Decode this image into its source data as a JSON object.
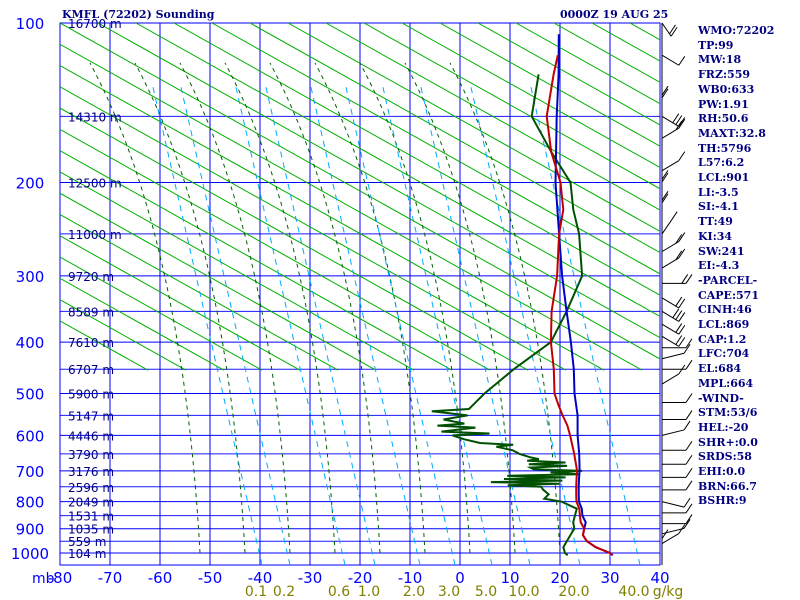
{
  "header": {
    "station": "KMFL (72202) Sounding",
    "time": "0000Z 19 AUG 25"
  },
  "indices": [
    "WMO:72202",
    "TP:99",
    "MW:18",
    "FRZ:559",
    "WB0:633",
    "PW:1.91",
    "RH:50.6",
    "MAXT:32.8",
    "TH:5796",
    "L57:6.2",
    "LCL:901",
    "LI:-3.5",
    "SI:-4.1",
    "TT:49",
    "KI:34",
    "SW:241",
    "EI:-4.3",
    "-PARCEL-",
    "CAPE:571",
    "CINH:46",
    "LCL:869",
    "CAP:1.2",
    "LFC:704",
    "EL:684",
    "MPL:664",
    "-WIND-",
    "STM:53/6",
    "HEL:-20",
    "SHR+:0.0",
    "SRDS:58",
    "EHI:0.0",
    "BRN:66.7",
    "BSHR:9"
  ],
  "colors": {
    "grid": "#0000ff",
    "dry_adiabat": "#00b000",
    "moist_adiabat": "#006000",
    "mixing_ratio": "#00aaff",
    "temperature": "#c00000",
    "dewpoint": "#005000",
    "parcel": "#0000c0",
    "label": "#000080",
    "mixing_label": "#808000"
  },
  "chart_data": {
    "type": "line",
    "title": "KMFL (72202) Sounding",
    "pressure_unit": "mb",
    "mixing_unit": "g/kg",
    "pressure_ticks": [
      "100",
      "200",
      "300",
      "400",
      "500",
      "600",
      "700",
      "800",
      "900",
      "1000"
    ],
    "temperature_ticks": [
      "-80",
      "-70",
      "-60",
      "-50",
      "-40",
      "-30",
      "-20",
      "-10",
      "0",
      "10",
      "20",
      "30",
      "40"
    ],
    "mixing_ratio_labels": [
      "0.1",
      "0.2",
      "0.6",
      "1.0",
      "2.0",
      "3.0",
      "5.0",
      "10.0",
      "20.0",
      "40.0"
    ],
    "height_labels": [
      {
        "p": 100,
        "label": "16700 m"
      },
      {
        "p": 150,
        "label": "14310 m"
      },
      {
        "p": 200,
        "label": "12500 m"
      },
      {
        "p": 250,
        "label": "11000 m"
      },
      {
        "p": 300,
        "label": "9720 m"
      },
      {
        "p": 350,
        "label": "8589 m"
      },
      {
        "p": 400,
        "label": "7610 m"
      },
      {
        "p": 450,
        "label": "6707 m"
      },
      {
        "p": 500,
        "label": "5900 m"
      },
      {
        "p": 550,
        "label": "5147 m"
      },
      {
        "p": 600,
        "label": "4446 m"
      },
      {
        "p": 650,
        "label": "3790 m"
      },
      {
        "p": 700,
        "label": "3176 m"
      },
      {
        "p": 750,
        "label": "2596 m"
      },
      {
        "p": 800,
        "label": "2049 m"
      },
      {
        "p": 850,
        "label": "1531 m"
      },
      {
        "p": 900,
        "label": "1035 m"
      },
      {
        "p": 950,
        "label": "559 m"
      },
      {
        "p": 1000,
        "label": "104 m"
      }
    ],
    "temperature": [
      [
        1010,
        31
      ],
      [
        1000,
        30
      ],
      [
        975,
        26
      ],
      [
        950,
        23
      ],
      [
        925,
        21
      ],
      [
        900,
        20
      ],
      [
        875,
        18
      ],
      [
        850,
        16.5
      ],
      [
        825,
        15
      ],
      [
        800,
        13
      ],
      [
        775,
        11.5
      ],
      [
        750,
        10
      ],
      [
        725,
        8.5
      ],
      [
        700,
        7
      ],
      [
        650,
        3
      ],
      [
        600,
        -1.5
      ],
      [
        575,
        -4
      ],
      [
        550,
        -7
      ],
      [
        525,
        -10
      ],
      [
        500,
        -13
      ],
      [
        450,
        -18
      ],
      [
        400,
        -24
      ],
      [
        350,
        -30
      ],
      [
        300,
        -36
      ],
      [
        250,
        -44
      ],
      [
        225,
        -48
      ],
      [
        200,
        -54
      ],
      [
        175,
        -62
      ],
      [
        150,
        -70
      ],
      [
        125,
        -77
      ],
      [
        115,
        -80
      ]
    ],
    "dewpoint": [
      [
        1010,
        22
      ],
      [
        1000,
        21
      ],
      [
        975,
        19.5
      ],
      [
        950,
        19
      ],
      [
        925,
        18.5
      ],
      [
        900,
        18
      ],
      [
        875,
        16.5
      ],
      [
        850,
        15.5
      ],
      [
        825,
        14.5
      ],
      [
        800,
        10
      ],
      [
        790,
        6
      ],
      [
        775,
        6
      ],
      [
        760,
        4
      ],
      [
        750,
        3
      ],
      [
        745,
        -4
      ],
      [
        740,
        6
      ],
      [
        735,
        -8
      ],
      [
        730,
        6
      ],
      [
        725,
        -6
      ],
      [
        720,
        6
      ],
      [
        715,
        -6
      ],
      [
        710,
        8
      ],
      [
        705,
        2
      ],
      [
        700,
        8
      ],
      [
        695,
        -2
      ],
      [
        690,
        -3
      ],
      [
        685,
        4
      ],
      [
        680,
        -4
      ],
      [
        675,
        3
      ],
      [
        670,
        -5
      ],
      [
        665,
        -3
      ],
      [
        660,
        -5
      ],
      [
        650,
        -8
      ],
      [
        640,
        -10
      ],
      [
        630,
        -14
      ],
      [
        625,
        -11
      ],
      [
        620,
        -18
      ],
      [
        610,
        -22
      ],
      [
        600,
        -25
      ],
      [
        595,
        -18
      ],
      [
        590,
        -28
      ],
      [
        580,
        -22
      ],
      [
        575,
        -30
      ],
      [
        570,
        -25
      ],
      [
        560,
        -30
      ],
      [
        550,
        -26
      ],
      [
        540,
        -34
      ],
      [
        535,
        -27
      ],
      [
        525,
        -27
      ],
      [
        500,
        -27
      ],
      [
        450,
        -26
      ],
      [
        400,
        -24
      ],
      [
        350,
        -27
      ],
      [
        300,
        -31
      ],
      [
        250,
        -40
      ],
      [
        225,
        -46
      ],
      [
        200,
        -52
      ],
      [
        175,
        -62
      ],
      [
        150,
        -73
      ],
      [
        125,
        -80
      ]
    ],
    "parcel": [
      [
        1010,
        31
      ],
      [
        1000,
        30
      ],
      [
        975,
        26
      ],
      [
        950,
        23
      ],
      [
        925,
        21
      ],
      [
        900,
        20
      ],
      [
        875,
        19
      ],
      [
        850,
        17
      ],
      [
        825,
        15.5
      ],
      [
        800,
        13.5
      ],
      [
        775,
        12
      ],
      [
        750,
        10.5
      ],
      [
        725,
        9
      ],
      [
        700,
        7.5
      ],
      [
        650,
        4
      ],
      [
        600,
        0
      ],
      [
        550,
        -4
      ],
      [
        500,
        -9
      ],
      [
        450,
        -14
      ],
      [
        400,
        -20
      ],
      [
        350,
        -27
      ],
      [
        300,
        -35
      ],
      [
        250,
        -44
      ],
      [
        200,
        -55
      ],
      [
        150,
        -68
      ],
      [
        125,
        -76
      ],
      [
        105,
        -84
      ]
    ],
    "wind_barbs": [
      [
        100,
        "SSE",
        2
      ],
      [
        115,
        "SE",
        1
      ],
      [
        130,
        "S",
        2
      ],
      [
        150,
        "SW",
        3
      ],
      [
        165,
        "NE",
        2
      ],
      [
        190,
        "NE",
        1
      ],
      [
        210,
        "N",
        2
      ],
      [
        230,
        "N",
        2
      ],
      [
        250,
        "NNW",
        1
      ],
      [
        270,
        "NW",
        2
      ],
      [
        290,
        "NW",
        2
      ],
      [
        310,
        "W",
        2
      ],
      [
        330,
        "SW",
        2
      ],
      [
        350,
        "SW",
        3
      ],
      [
        370,
        "SW",
        2
      ],
      [
        390,
        "SW",
        2
      ],
      [
        410,
        "W",
        1
      ],
      [
        430,
        "WNW",
        1
      ],
      [
        450,
        "W",
        1
      ],
      [
        480,
        "NW",
        1
      ],
      [
        520,
        "W",
        1
      ],
      [
        560,
        "W",
        1
      ],
      [
        600,
        "WNW",
        1
      ],
      [
        640,
        "W",
        1
      ],
      [
        680,
        "W",
        1
      ],
      [
        720,
        "W",
        1
      ],
      [
        760,
        "W",
        1
      ],
      [
        800,
        "WSW",
        1
      ],
      [
        840,
        "W",
        1
      ],
      [
        880,
        "W",
        1
      ],
      [
        920,
        "WNW",
        1
      ],
      [
        960,
        "NW",
        1
      ],
      [
        1000,
        "N",
        1
      ]
    ]
  }
}
